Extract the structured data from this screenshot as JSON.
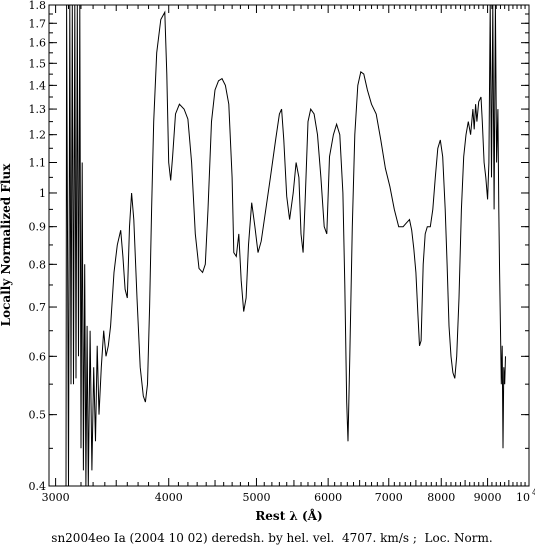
{
  "chart_data": {
    "type": "line",
    "title": "",
    "xlabel": "Rest λ (Å)",
    "ylabel": "Locally Normalized Flux",
    "caption": "sn2004eo Ia (2004 10 02) deredsh. by hel. vel.  4707. km/s ;  Loc. Norm.",
    "x_scale": "log",
    "y_scale": "log",
    "xlim": [
      2950,
      10000
    ],
    "ylim": [
      0.4,
      1.8
    ],
    "x_ticks": [
      {
        "value": 3000,
        "label": "3000"
      },
      {
        "value": 4000,
        "label": "4000"
      },
      {
        "value": 5000,
        "label": "5000"
      },
      {
        "value": 6000,
        "label": "6000"
      },
      {
        "value": 7000,
        "label": "7000"
      },
      {
        "value": 8000,
        "label": "8000"
      },
      {
        "value": 9000,
        "label": "9000"
      }
    ],
    "x_end_label": {
      "base": "10",
      "exp": "4"
    },
    "y_ticks": [
      {
        "value": 0.4,
        "label": "0.4"
      },
      {
        "value": 0.5,
        "label": "0.5"
      },
      {
        "value": 0.6,
        "label": "0.6"
      },
      {
        "value": 0.7,
        "label": "0.7"
      },
      {
        "value": 0.8,
        "label": "0.8"
      },
      {
        "value": 0.9,
        "label": "0.9"
      },
      {
        "value": 1.0,
        "label": "1"
      },
      {
        "value": 1.1,
        "label": "1.1"
      },
      {
        "value": 1.2,
        "label": "1.2"
      },
      {
        "value": 1.3,
        "label": "1.3"
      },
      {
        "value": 1.4,
        "label": "1.4"
      },
      {
        "value": 1.5,
        "label": "1.5"
      },
      {
        "value": 1.6,
        "label": "1.6"
      },
      {
        "value": 1.7,
        "label": "1.7"
      },
      {
        "value": 1.8,
        "label": "1.8"
      }
    ],
    "grid": false,
    "series": [
      {
        "color": "#000000",
        "points": [
          [
            3080,
            0.4
          ],
          [
            3085,
            1.8
          ],
          [
            3100,
            0.4
          ],
          [
            3110,
            1.8
          ],
          [
            3120,
            0.55
          ],
          [
            3130,
            1.8
          ],
          [
            3140,
            0.55
          ],
          [
            3150,
            1.8
          ],
          [
            3160,
            0.56
          ],
          [
            3170,
            1.8
          ],
          [
            3180,
            0.6
          ],
          [
            3190,
            1.8
          ],
          [
            3200,
            0.45
          ],
          [
            3210,
            1.1
          ],
          [
            3220,
            0.42
          ],
          [
            3230,
            0.8
          ],
          [
            3240,
            0.4
          ],
          [
            3250,
            0.66
          ],
          [
            3260,
            0.4
          ],
          [
            3275,
            0.65
          ],
          [
            3290,
            0.42
          ],
          [
            3305,
            0.58
          ],
          [
            3320,
            0.46
          ],
          [
            3335,
            0.62
          ],
          [
            3350,
            0.5
          ],
          [
            3370,
            0.58
          ],
          [
            3390,
            0.65
          ],
          [
            3410,
            0.6
          ],
          [
            3430,
            0.62
          ],
          [
            3450,
            0.66
          ],
          [
            3480,
            0.78
          ],
          [
            3510,
            0.85
          ],
          [
            3540,
            0.89
          ],
          [
            3560,
            0.82
          ],
          [
            3580,
            0.74
          ],
          [
            3600,
            0.72
          ],
          [
            3620,
            0.9
          ],
          [
            3640,
            1.0
          ],
          [
            3660,
            0.92
          ],
          [
            3690,
            0.72
          ],
          [
            3720,
            0.58
          ],
          [
            3750,
            0.53
          ],
          [
            3770,
            0.52
          ],
          [
            3790,
            0.55
          ],
          [
            3810,
            0.7
          ],
          [
            3830,
            0.95
          ],
          [
            3850,
            1.25
          ],
          [
            3880,
            1.55
          ],
          [
            3920,
            1.72
          ],
          [
            3960,
            1.76
          ],
          [
            3980,
            1.45
          ],
          [
            4000,
            1.1
          ],
          [
            4020,
            1.04
          ],
          [
            4040,
            1.12
          ],
          [
            4070,
            1.28
          ],
          [
            4110,
            1.32
          ],
          [
            4160,
            1.3
          ],
          [
            4200,
            1.26
          ],
          [
            4240,
            1.1
          ],
          [
            4280,
            0.88
          ],
          [
            4320,
            0.79
          ],
          [
            4360,
            0.78
          ],
          [
            4390,
            0.8
          ],
          [
            4420,
            0.95
          ],
          [
            4460,
            1.25
          ],
          [
            4500,
            1.38
          ],
          [
            4540,
            1.42
          ],
          [
            4580,
            1.43
          ],
          [
            4620,
            1.4
          ],
          [
            4660,
            1.32
          ],
          [
            4700,
            1.05
          ],
          [
            4720,
            0.83
          ],
          [
            4750,
            0.82
          ],
          [
            4780,
            0.88
          ],
          [
            4810,
            0.76
          ],
          [
            4840,
            0.69
          ],
          [
            4870,
            0.72
          ],
          [
            4900,
            0.85
          ],
          [
            4940,
            0.97
          ],
          [
            4980,
            0.9
          ],
          [
            5020,
            0.83
          ],
          [
            5060,
            0.86
          ],
          [
            5120,
            0.95
          ],
          [
            5180,
            1.05
          ],
          [
            5250,
            1.18
          ],
          [
            5300,
            1.28
          ],
          [
            5330,
            1.3
          ],
          [
            5360,
            1.18
          ],
          [
            5400,
            0.99
          ],
          [
            5440,
            0.92
          ],
          [
            5490,
            1.0
          ],
          [
            5530,
            1.1
          ],
          [
            5570,
            1.05
          ],
          [
            5600,
            0.88
          ],
          [
            5630,
            0.83
          ],
          [
            5660,
            0.98
          ],
          [
            5700,
            1.25
          ],
          [
            5740,
            1.3
          ],
          [
            5790,
            1.28
          ],
          [
            5840,
            1.2
          ],
          [
            5890,
            1.05
          ],
          [
            5940,
            0.9
          ],
          [
            5980,
            0.88
          ],
          [
            6020,
            1.12
          ],
          [
            6080,
            1.2
          ],
          [
            6130,
            1.24
          ],
          [
            6180,
            1.2
          ],
          [
            6230,
            1.0
          ],
          [
            6260,
            0.75
          ],
          [
            6290,
            0.52
          ],
          [
            6310,
            0.46
          ],
          [
            6340,
            0.6
          ],
          [
            6380,
            0.9
          ],
          [
            6420,
            1.2
          ],
          [
            6470,
            1.4
          ],
          [
            6520,
            1.46
          ],
          [
            6570,
            1.45
          ],
          [
            6630,
            1.38
          ],
          [
            6700,
            1.32
          ],
          [
            6780,
            1.28
          ],
          [
            6860,
            1.18
          ],
          [
            6940,
            1.08
          ],
          [
            7020,
            1.02
          ],
          [
            7100,
            0.95
          ],
          [
            7180,
            0.9
          ],
          [
            7260,
            0.9
          ],
          [
            7320,
            0.91
          ],
          [
            7380,
            0.92
          ],
          [
            7420,
            0.89
          ],
          [
            7460,
            0.84
          ],
          [
            7500,
            0.78
          ],
          [
            7540,
            0.68
          ],
          [
            7570,
            0.62
          ],
          [
            7600,
            0.63
          ],
          [
            7640,
            0.8
          ],
          [
            7680,
            0.88
          ],
          [
            7720,
            0.9
          ],
          [
            7780,
            0.9
          ],
          [
            7830,
            0.95
          ],
          [
            7880,
            1.05
          ],
          [
            7930,
            1.15
          ],
          [
            7980,
            1.18
          ],
          [
            8030,
            1.12
          ],
          [
            8080,
            0.95
          ],
          [
            8120,
            0.8
          ],
          [
            8160,
            0.66
          ],
          [
            8200,
            0.6
          ],
          [
            8240,
            0.57
          ],
          [
            8280,
            0.56
          ],
          [
            8320,
            0.6
          ],
          [
            8370,
            0.72
          ],
          [
            8420,
            0.95
          ],
          [
            8470,
            1.12
          ],
          [
            8520,
            1.2
          ],
          [
            8570,
            1.25
          ],
          [
            8620,
            1.2
          ],
          [
            8670,
            1.3
          ],
          [
            8700,
            1.22
          ],
          [
            8730,
            1.32
          ],
          [
            8760,
            1.25
          ],
          [
            8800,
            1.33
          ],
          [
            8850,
            1.35
          ],
          [
            8880,
            1.25
          ],
          [
            8920,
            1.1
          ],
          [
            8960,
            1.05
          ],
          [
            9000,
            0.98
          ],
          [
            9030,
            1.1
          ],
          [
            9060,
            1.8
          ],
          [
            9090,
            1.05
          ],
          [
            9120,
            1.8
          ],
          [
            9150,
            0.95
          ],
          [
            9180,
            1.8
          ],
          [
            9210,
            1.1
          ],
          [
            9240,
            1.3
          ],
          [
            9260,
            0.95
          ],
          [
            9280,
            0.78
          ],
          [
            9300,
            0.65
          ],
          [
            9320,
            0.55
          ],
          [
            9340,
            0.62
          ],
          [
            9360,
            0.45
          ],
          [
            9380,
            0.58
          ],
          [
            9400,
            0.55
          ],
          [
            9420,
            0.6
          ]
        ]
      }
    ]
  }
}
